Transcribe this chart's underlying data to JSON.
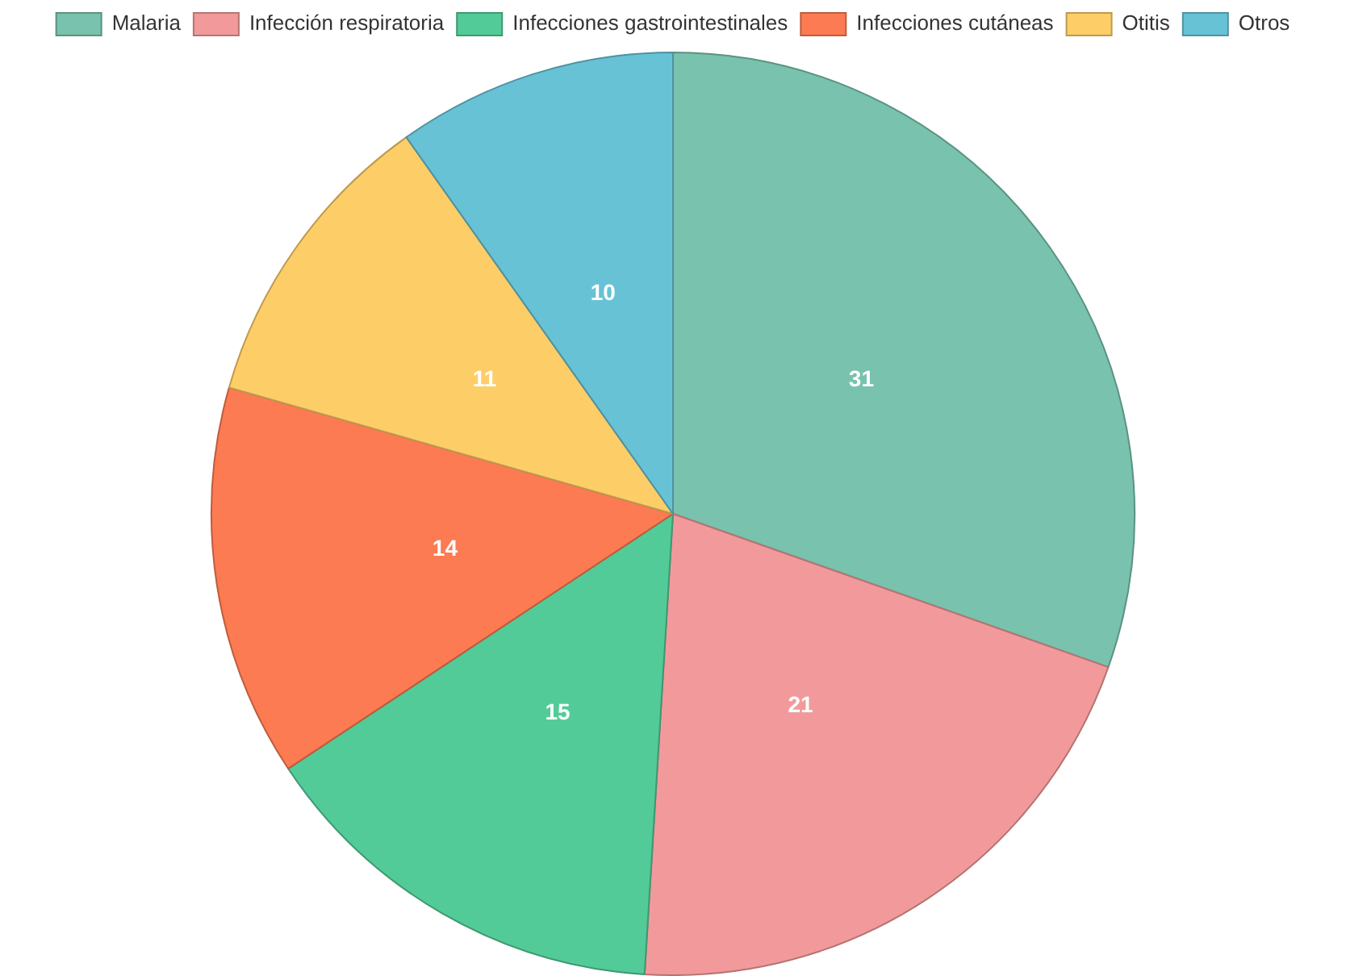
{
  "chart_data": {
    "type": "pie",
    "categories": [
      "Malaria",
      "Infección respiratoria",
      "Infecciones gastrointestinales",
      "Infecciones cutáneas",
      "Otitis",
      "Otros"
    ],
    "values": [
      31,
      21,
      15,
      14,
      11,
      10
    ],
    "colors": [
      "#79c2ad",
      "#f29a9b",
      "#52cb98",
      "#fd7b52",
      "#fdcd68",
      "#68c2d6"
    ],
    "data_labels": true,
    "legend": "top"
  }
}
